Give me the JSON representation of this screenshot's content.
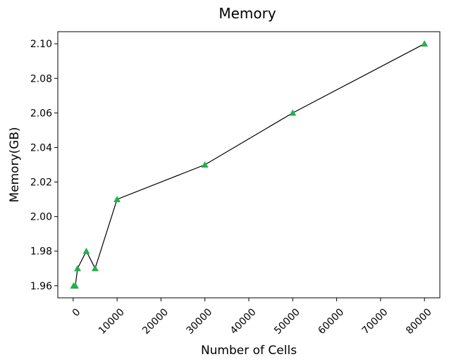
{
  "chart_data": {
    "type": "line",
    "title": "Memory",
    "xlabel": "Number of Cells",
    "ylabel": "Memory(GB)",
    "xlim": [
      -3500,
      83500
    ],
    "ylim": [
      1.953,
      2.107
    ],
    "x_ticks": [
      0,
      10000,
      20000,
      30000,
      40000,
      50000,
      60000,
      70000,
      80000
    ],
    "x_tick_labels": [
      "0",
      "10000",
      "20000",
      "30000",
      "40000",
      "50000",
      "60000",
      "70000",
      "80000"
    ],
    "x_tick_rotation_deg": 45,
    "y_ticks": [
      1.96,
      1.98,
      2.0,
      2.02,
      2.04,
      2.06,
      2.08,
      2.1
    ],
    "y_tick_labels": [
      "1.96",
      "1.98",
      "2.00",
      "2.02",
      "2.04",
      "2.06",
      "2.08",
      "2.10"
    ],
    "grid": false,
    "series": [
      {
        "x": [
          100,
          500,
          1000,
          3000,
          5000,
          10000,
          30000,
          50000,
          80000
        ],
        "y": [
          1.96,
          1.96,
          1.97,
          1.98,
          1.97,
          2.01,
          2.03,
          2.06,
          2.1
        ],
        "line_color": "#000000",
        "marker": "triangle-up",
        "marker_color": "#22b14c"
      }
    ]
  }
}
